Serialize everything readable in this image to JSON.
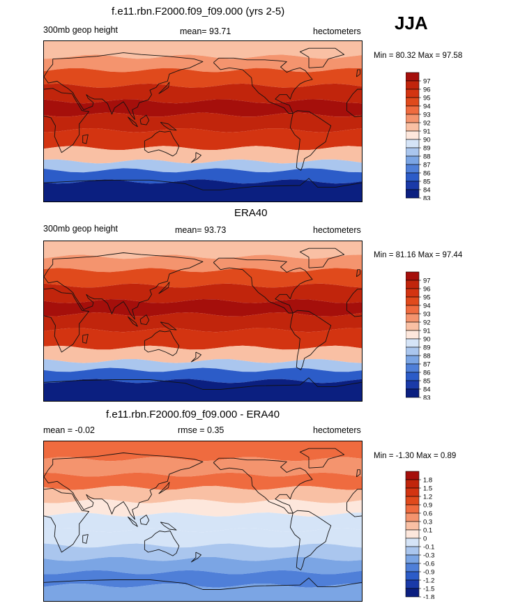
{
  "season": "JJA",
  "panels": [
    {
      "title": "f.e11.rbn.F2000.f09_f09.000 (yrs 2-5)",
      "left": "300mb geop height",
      "center": "mean=  93.71",
      "right": "hectometers",
      "minmax": "Min =  80.32 Max =  97.58"
    },
    {
      "title": "ERA40",
      "left": "300mb geop height",
      "center": "mean=  93.73",
      "right": "hectometers",
      "minmax": "Min =  81.16 Max =  97.44"
    },
    {
      "title": "f.e11.rbn.F2000.f09_f09.000 - ERA40",
      "left": "mean =  -0.02",
      "center": "rmse =   0.35",
      "right": "hectometers",
      "minmax": "Min =  -1.30 Max =   0.89"
    }
  ],
  "chart_data": [
    {
      "type": "heatmap",
      "title": "f.e11.rbn.F2000.f09_f09.000 (yrs 2-5)",
      "variable": "300mb geop height",
      "units": "hectometers",
      "mean": 93.71,
      "min": 80.32,
      "max": 97.58,
      "colorbar_levels": [
        "97",
        "96",
        "95",
        "94",
        "93",
        "92",
        "91",
        "90",
        "89",
        "88",
        "87",
        "86",
        "85",
        "84",
        "83"
      ],
      "colorbar_colors": [
        "#a50f0b",
        "#c1250c",
        "#d33411",
        "#e04a1c",
        "#ef6b3f",
        "#f4946e",
        "#f9c0a4",
        "#fde7dc",
        "#d5e4f7",
        "#aac6ee",
        "#7ba5e4",
        "#4f7fd8",
        "#2c5cc8",
        "#1a3aa8",
        "#0b1f80"
      ],
      "zonal_profile": [
        {
          "lat": 80,
          "level": "91"
        },
        {
          "lat": 65,
          "level": "92"
        },
        {
          "lat": 50,
          "level": "94"
        },
        {
          "lat": 30,
          "level": "96"
        },
        {
          "lat": 15,
          "level": "97"
        },
        {
          "lat": 0,
          "level": "96"
        },
        {
          "lat": -20,
          "level": "95"
        },
        {
          "lat": -40,
          "level": "91"
        },
        {
          "lat": -50,
          "level": "88"
        },
        {
          "lat": -60,
          "level": "85"
        },
        {
          "lat": -75,
          "level": "83"
        }
      ]
    },
    {
      "type": "heatmap",
      "title": "ERA40",
      "variable": "300mb geop height",
      "units": "hectometers",
      "mean": 93.73,
      "min": 81.16,
      "max": 97.44,
      "colorbar_levels": [
        "97",
        "96",
        "95",
        "94",
        "93",
        "92",
        "91",
        "90",
        "89",
        "88",
        "87",
        "86",
        "85",
        "84",
        "83"
      ],
      "colorbar_colors": [
        "#a50f0b",
        "#c1250c",
        "#d33411",
        "#e04a1c",
        "#ef6b3f",
        "#f4946e",
        "#f9c0a4",
        "#fde7dc",
        "#d5e4f7",
        "#aac6ee",
        "#7ba5e4",
        "#4f7fd8",
        "#2c5cc8",
        "#1a3aa8",
        "#0b1f80"
      ],
      "zonal_profile": [
        {
          "lat": 80,
          "level": "91"
        },
        {
          "lat": 65,
          "level": "92"
        },
        {
          "lat": 50,
          "level": "94"
        },
        {
          "lat": 30,
          "level": "96"
        },
        {
          "lat": 15,
          "level": "97"
        },
        {
          "lat": 0,
          "level": "96"
        },
        {
          "lat": -20,
          "level": "95"
        },
        {
          "lat": -40,
          "level": "91"
        },
        {
          "lat": -50,
          "level": "88"
        },
        {
          "lat": -60,
          "level": "85"
        },
        {
          "lat": -75,
          "level": "83"
        }
      ]
    },
    {
      "type": "heatmap",
      "title": "f.e11.rbn.F2000.f09_f09.000 - ERA40",
      "units": "hectometers",
      "mean": -0.02,
      "rmse": 0.35,
      "min": -1.3,
      "max": 0.89,
      "colorbar_levels": [
        "1.8",
        "1.5",
        "1.2",
        "0.9",
        "0.6",
        "0.3",
        "0.1",
        "0",
        "-0.1",
        "-0.3",
        "-0.6",
        "-0.9",
        "-1.2",
        "-1.5",
        "-1.8"
      ],
      "colorbar_colors": [
        "#a50f0b",
        "#c1250c",
        "#d33411",
        "#e04a1c",
        "#ef6b3f",
        "#f4946e",
        "#f9c0a4",
        "#fde7dc",
        "#d5e4f7",
        "#aac6ee",
        "#7ba5e4",
        "#4f7fd8",
        "#2c5cc8",
        "#1a3aa8",
        "#0b1f80"
      ],
      "zonal_profile": [
        {
          "lat": 80,
          "level": "0.6"
        },
        {
          "lat": 60,
          "level": "0.3"
        },
        {
          "lat": 45,
          "level": "0.6"
        },
        {
          "lat": 30,
          "level": "0.1"
        },
        {
          "lat": 15,
          "level": "0"
        },
        {
          "lat": 0,
          "level": "-0.1"
        },
        {
          "lat": -20,
          "level": "-0.1"
        },
        {
          "lat": -35,
          "level": "-0.3"
        },
        {
          "lat": -50,
          "level": "-0.6"
        },
        {
          "lat": -65,
          "level": "-0.9"
        },
        {
          "lat": -80,
          "level": "-0.6"
        }
      ]
    }
  ]
}
